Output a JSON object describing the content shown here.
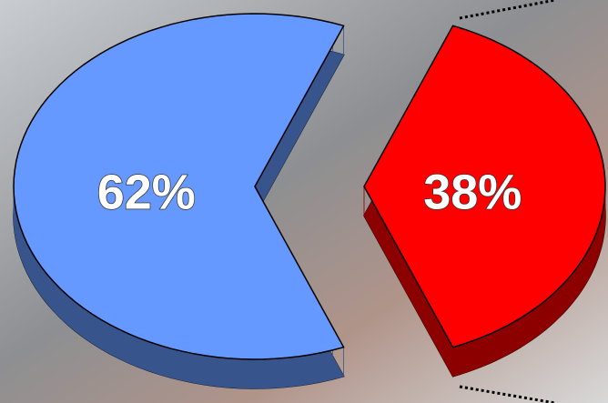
{
  "chart_data": {
    "type": "pie",
    "values": [
      62,
      38
    ],
    "value_labels": [
      "62%",
      "38%"
    ],
    "colors": [
      "#6699ff",
      "#ff0000"
    ]
  }
}
